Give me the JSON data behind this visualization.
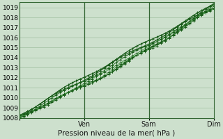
{
  "title": "",
  "xlabel": "Pression niveau de la mer( hPa )",
  "ylabel": "",
  "ylim": [
    1008,
    1019.5
  ],
  "xlim": [
    0,
    72
  ],
  "yticks": [
    1008,
    1009,
    1010,
    1011,
    1012,
    1013,
    1014,
    1015,
    1016,
    1017,
    1018,
    1019
  ],
  "xtick_positions": [
    0,
    24,
    48,
    72
  ],
  "xtick_labels": [
    "",
    "Ven",
    "Sam",
    "Dim"
  ],
  "bg_color": "#cde0cd",
  "grid_color": "#a0c0a0",
  "line_color_dark": "#1a5c1a",
  "line_color_mid": "#2d7a2d",
  "line_color_light": "#4a9e4a",
  "marker_color": "#1a5c1a",
  "vline_color": "#336633",
  "vline_color2": "#4a7a4a"
}
